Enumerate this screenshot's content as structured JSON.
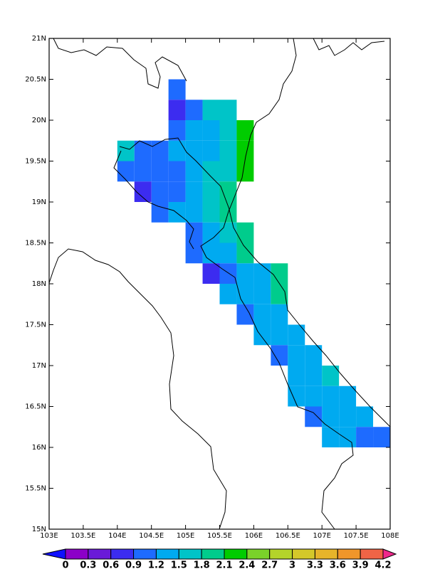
{
  "chart_data": {
    "type": "grid-map",
    "xlim": [
      103,
      108
    ],
    "ylim": [
      15,
      21
    ],
    "xticks": [
      {
        "value": 103,
        "label": "103E"
      },
      {
        "value": 103.5,
        "label": "103.5E"
      },
      {
        "value": 104,
        "label": "104E"
      },
      {
        "value": 104.5,
        "label": "104.5E"
      },
      {
        "value": 105,
        "label": "105E"
      },
      {
        "value": 105.5,
        "label": "105.5E"
      },
      {
        "value": 106,
        "label": "106E"
      },
      {
        "value": 106.5,
        "label": "106.5E"
      },
      {
        "value": 107,
        "label": "107E"
      },
      {
        "value": 107.5,
        "label": "107.5E"
      },
      {
        "value": 108,
        "label": "108E"
      }
    ],
    "yticks": [
      {
        "value": 15,
        "label": "15N"
      },
      {
        "value": 15.5,
        "label": "15.5N"
      },
      {
        "value": 16,
        "label": "16N"
      },
      {
        "value": 16.5,
        "label": "16.5N"
      },
      {
        "value": 17,
        "label": "17N"
      },
      {
        "value": 17.5,
        "label": "17.5N"
      },
      {
        "value": 18,
        "label": "18N"
      },
      {
        "value": 18.5,
        "label": "18.5N"
      },
      {
        "value": 19,
        "label": "19N"
      },
      {
        "value": 19.5,
        "label": "19.5N"
      },
      {
        "value": 20,
        "label": "20N"
      },
      {
        "value": 20.5,
        "label": "20.5N"
      },
      {
        "value": 21,
        "label": "21N"
      }
    ],
    "cell_size": 0.25,
    "levels": [
      0,
      0.3,
      0.6,
      0.9,
      1.2,
      1.5,
      1.8,
      2.1,
      2.4,
      2.7,
      3,
      3.3,
      3.6,
      3.9,
      4.2
    ],
    "colors": [
      "#1010ff",
      "#8c00c8",
      "#6a1ad8",
      "#3c2cf0",
      "#1e6bff",
      "#00aaf0",
      "#00c4c8",
      "#00cc8c",
      "#00cc00",
      "#7ad22a",
      "#b4d42a",
      "#d4c82a",
      "#e6b42a",
      "#f0962a",
      "#f06446",
      "#f0288c"
    ],
    "cells": {
      "lon": [
        104.75,
        104.75,
        105,
        105.25,
        105.5,
        104.75,
        105,
        105.25,
        105.5,
        105.75,
        104,
        104.25,
        104.5,
        104.75,
        105,
        105.25,
        105.5,
        105.75,
        104,
        104.25,
        104.5,
        104.75,
        105,
        105.25,
        105.5,
        105.75,
        104.25,
        104.5,
        104.75,
        105,
        105.25,
        105.5,
        104.5,
        104.75,
        105,
        105.25,
        105.5,
        105,
        105.25,
        105.5,
        105.75,
        105,
        105.25,
        105.5,
        105.75,
        105.25,
        105.5,
        105.75,
        106,
        106.25,
        105.5,
        105.75,
        106,
        106.25,
        105.75,
        106,
        106.25,
        106,
        106.25,
        106.5,
        106.25,
        106.5,
        106.75,
        106.5,
        106.75,
        107,
        106.5,
        106.75,
        107,
        107.25,
        106.75,
        107,
        107.25,
        107.5,
        107,
        107.25,
        107.5,
        107.75
      ],
      "lat": [
        20.25,
        20,
        20,
        20,
        20,
        19.75,
        19.75,
        19.75,
        19.75,
        19.75,
        19.5,
        19.5,
        19.5,
        19.5,
        19.5,
        19.5,
        19.5,
        19.5,
        19.25,
        19.25,
        19.25,
        19.25,
        19.25,
        19.25,
        19.25,
        19.25,
        19,
        19,
        19,
        19,
        19,
        19,
        18.75,
        18.75,
        18.75,
        18.75,
        18.75,
        18.5,
        18.5,
        18.5,
        18.5,
        18.25,
        18.25,
        18.25,
        18.25,
        18,
        18,
        18,
        18,
        18,
        17.75,
        17.75,
        17.75,
        17.75,
        17.5,
        17.5,
        17.5,
        17.25,
        17.25,
        17.25,
        17,
        17,
        17,
        16.75,
        16.75,
        16.75,
        16.5,
        16.5,
        16.5,
        16.5,
        16.25,
        16.25,
        16.25,
        16.25,
        16,
        16,
        16,
        16
      ],
      "values": [
        1.05,
        0.75,
        1.05,
        1.65,
        1.65,
        1.05,
        1.35,
        1.35,
        1.65,
        2.25,
        1.65,
        1.05,
        1.05,
        1.35,
        1.35,
        1.35,
        1.65,
        2.25,
        1.05,
        1.05,
        1.05,
        1.05,
        1.35,
        1.65,
        1.65,
        2.25,
        0.75,
        1.05,
        1.05,
        1.35,
        1.65,
        1.95,
        1.05,
        1.35,
        1.35,
        1.65,
        1.95,
        1.05,
        1.35,
        1.65,
        1.95,
        1.05,
        1.35,
        1.35,
        1.95,
        0.75,
        1.05,
        1.35,
        1.35,
        1.95,
        1.35,
        1.35,
        1.35,
        1.95,
        1.05,
        1.35,
        1.35,
        1.35,
        1.35,
        1.35,
        1.05,
        1.35,
        1.35,
        1.35,
        1.35,
        1.65,
        1.35,
        1.35,
        1.35,
        1.35,
        1.05,
        1.35,
        1.35,
        1.35,
        1.35,
        1.35,
        1.05,
        1.05
      ]
    }
  }
}
